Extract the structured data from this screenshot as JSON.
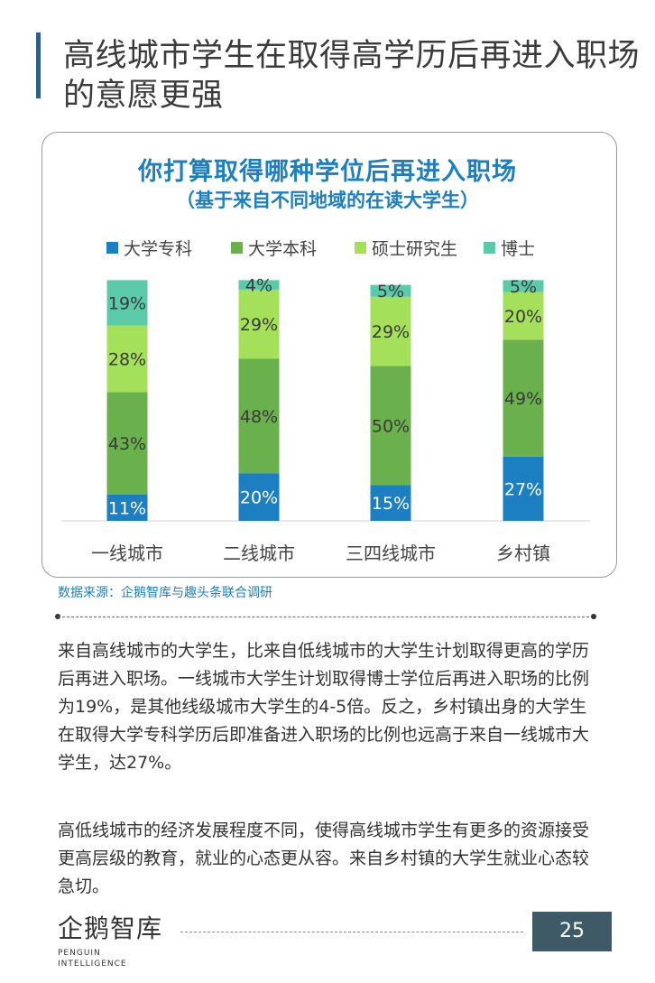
{
  "page": {
    "title": "高线城市学生在取得高学历后再进入职场的意愿更强",
    "source": "数据来源：企鹅智库与趣头条联合调研",
    "paragraph1": "来自高线城市的大学生，比来自低线城市的大学生计划取得更高的学历后再进入职场。一线城市大学生计划取得博士学位后再进入职场的比例为19%，是其他线级城市大学生的4-5倍。反之，乡村镇出身的大学生在取得大学专科学历后即准备进入职场的比例也远高于来自一线城市大学生，达27%。",
    "paragraph2": "高低线城市的经济发展程度不同，使得高线城市学生有更多的资源接受更高层级的教育，就业的心态更从容。来自乡村镇的大学生就业心态较急切。",
    "logo_text": "企鹅智库",
    "logo_subtext": "PENGUIN INTELLIGENCE",
    "page_number": "25"
  },
  "chart_data": {
    "type": "bar",
    "stacked": true,
    "title": "你打算取得哪种学位后再进入职场",
    "subtitle": "（基于来自不同地域的在读大学生）",
    "categories": [
      "一线城市",
      "二线城市",
      "三四线城市",
      "乡村镇"
    ],
    "series": [
      {
        "name": "大学专科",
        "color": "#1c7fc1",
        "values": [
          11,
          20,
          15,
          27
        ],
        "labels": [
          "11%",
          "20%",
          "15%",
          "27%"
        ]
      },
      {
        "name": "大学本科",
        "color": "#6ab04c",
        "values": [
          43,
          48,
          50,
          49
        ],
        "labels": [
          "43%",
          "48%",
          "50%",
          "49%"
        ]
      },
      {
        "name": "硕士研究生",
        "color": "#a4e05a",
        "values": [
          28,
          29,
          29,
          20
        ],
        "labels": [
          "28%",
          "29%",
          "29%",
          "20%"
        ]
      },
      {
        "name": "博士",
        "color": "#5bcaa8",
        "values": [
          19,
          4,
          5,
          5
        ],
        "labels": [
          "19%",
          "4%",
          "5%",
          "5%"
        ]
      }
    ],
    "legend_position": "top",
    "ylim": [
      0,
      100
    ],
    "grid": false
  }
}
